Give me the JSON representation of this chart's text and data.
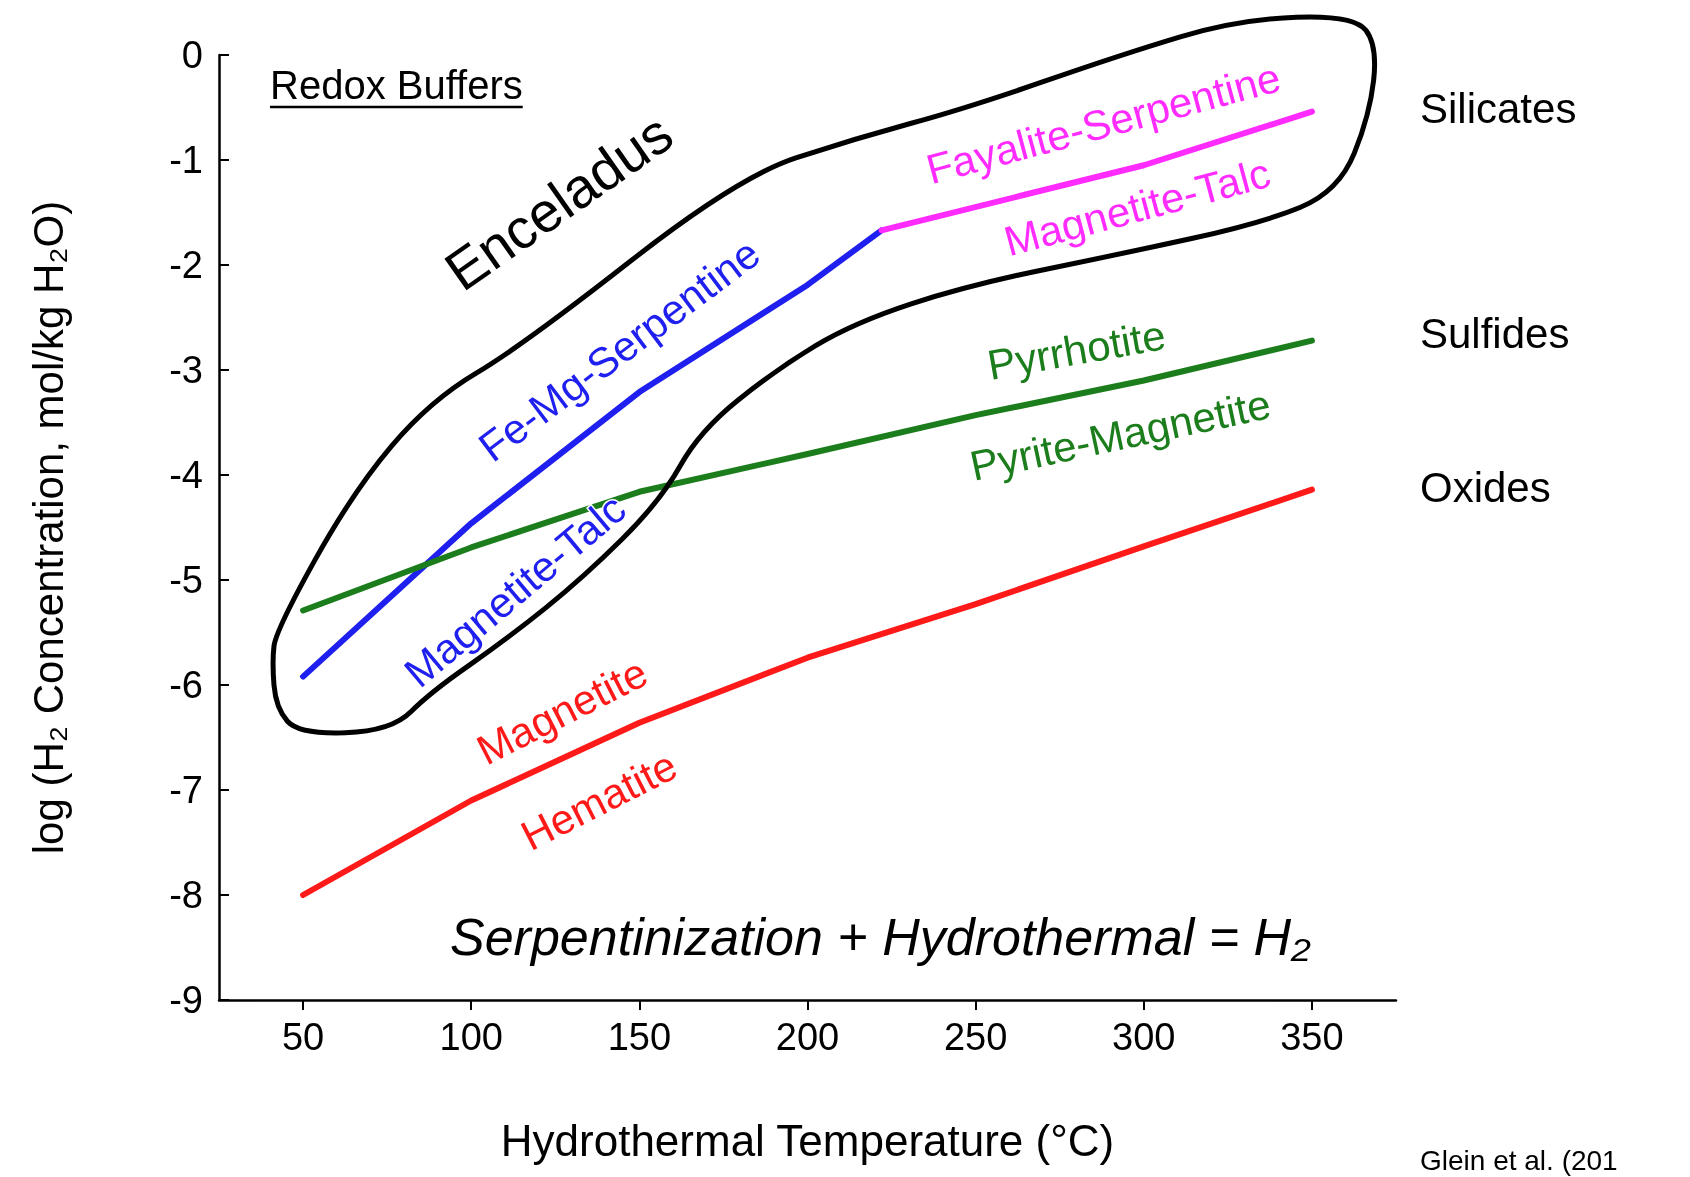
{
  "chart_data": {
    "type": "line",
    "xlabel": "Hydrothermal Temperature (°C)",
    "ylabel": "log (H₂ Concentration, mol/kg H₂O)",
    "xlim": [
      25,
      375
    ],
    "xticks": [
      50,
      100,
      150,
      200,
      250,
      300,
      350
    ],
    "ylim": [
      -9,
      0
    ],
    "yticks": [
      0,
      -1,
      -2,
      -3,
      -4,
      -5,
      -6,
      -7,
      -8,
      -9
    ],
    "grid": false,
    "marker": "none",
    "line_style": "solid",
    "series": [
      {
        "color": "#1f1fef",
        "x": [
          50,
          100,
          150,
          200,
          222
        ],
        "values": [
          -5.92,
          -4.46,
          -3.21,
          -2.19,
          -1.67
        ]
      },
      {
        "color": "#ff2bff",
        "x": [
          222,
          300,
          350
        ],
        "values": [
          -1.67,
          -1.05,
          -0.54
        ]
      },
      {
        "color": "#1b7d1b",
        "x": [
          50,
          100,
          150,
          200,
          250,
          300,
          350
        ],
        "values": [
          -5.29,
          -4.69,
          -4.16,
          -3.8,
          -3.43,
          -3.1,
          -2.72
        ]
      },
      {
        "color": "#ff1a1a",
        "x": [
          50,
          100,
          150,
          200,
          250,
          300,
          350
        ],
        "values": [
          -8.0,
          -7.1,
          -6.36,
          -5.74,
          -5.23,
          -4.68,
          -4.14
        ]
      }
    ],
    "annotations": [
      "Fe-Mg-Serpentine",
      "Magnetite-Talc",
      "Fayalite-Serpentine",
      "Magnetite-Talc",
      "Pyrrhotite",
      "Pyrite-Magnetite",
      "Magnetite",
      "Hematite",
      "Enceladus",
      "Redox Buffers",
      "Silicates",
      "Sulfides",
      "Oxides",
      "Serpentinization + Hydrothermal = H₂",
      "Glein et al. (201"
    ]
  }
}
